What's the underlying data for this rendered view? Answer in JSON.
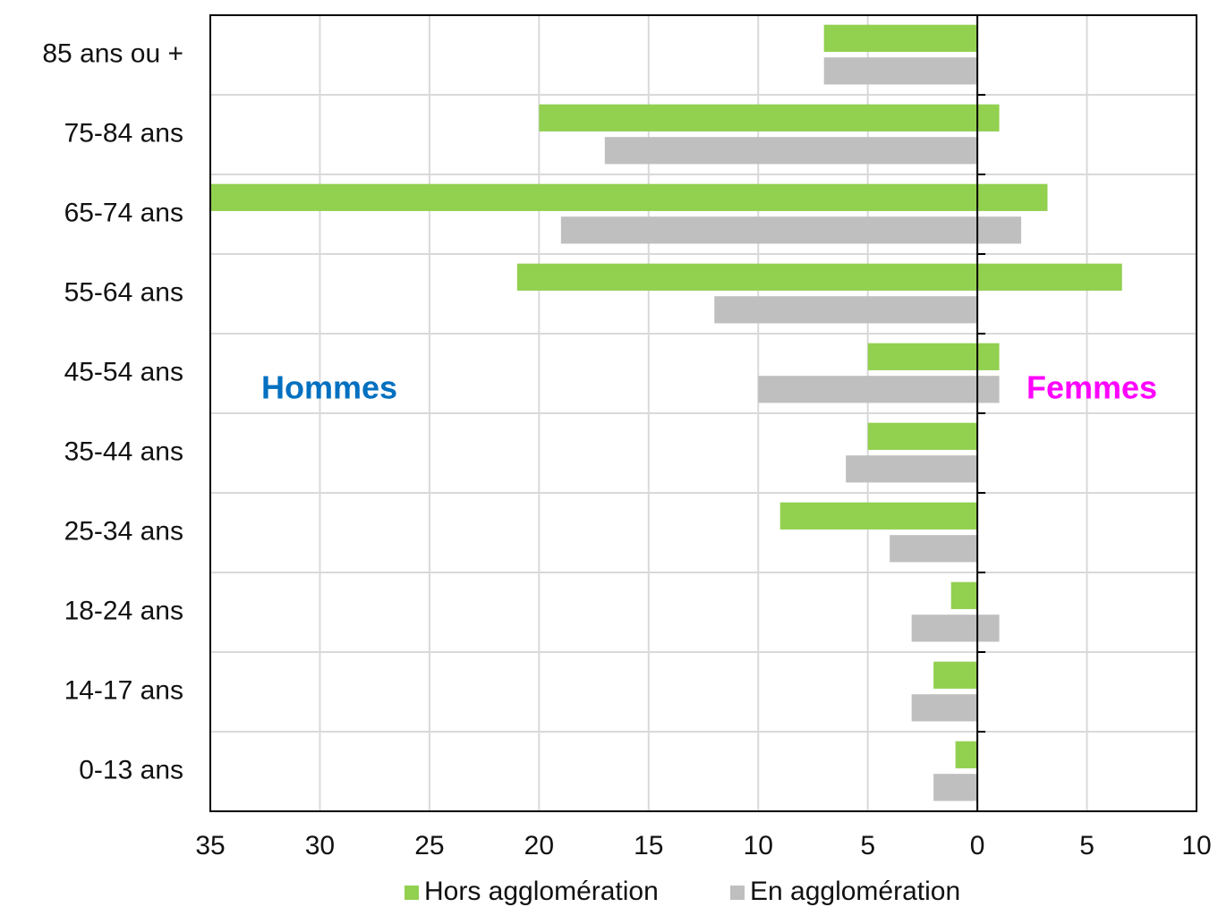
{
  "chart_data": {
    "type": "bar",
    "orientation": "horizontal",
    "categories": [
      "85 ans ou +",
      "75-84 ans",
      "65-74 ans",
      "55-64 ans",
      "45-54 ans",
      "35-44 ans",
      "25-34 ans",
      "18-24 ans",
      "14-17 ans",
      "0-13 ans"
    ],
    "series": [
      {
        "name": "Hors agglomération",
        "color": "#92d050",
        "hommes": [
          -7,
          -20,
          -35,
          -21,
          -5,
          -5,
          -9,
          -1.2,
          -2,
          -1
        ],
        "femmes": [
          0,
          1,
          3.2,
          6.6,
          1,
          0,
          0,
          0,
          0,
          0
        ]
      },
      {
        "name": "En agglomération",
        "color": "#bfbfbf",
        "hommes": [
          -7,
          -17,
          -19,
          -12,
          -10,
          -6,
          -4,
          -3,
          -3,
          -2
        ],
        "femmes": [
          0,
          0,
          2,
          0,
          1,
          0,
          0,
          1,
          0,
          0
        ]
      }
    ],
    "annotations": [
      {
        "text": "Hommes",
        "color": "#0070c0"
      },
      {
        "text": "Femmes",
        "color": "#ff00ff"
      }
    ],
    "xlim": [
      -35,
      10
    ],
    "xticks": [
      {
        "value": -35,
        "label": "35"
      },
      {
        "value": -30,
        "label": "30"
      },
      {
        "value": -25,
        "label": "25"
      },
      {
        "value": -20,
        "label": "20"
      },
      {
        "value": -15,
        "label": "15"
      },
      {
        "value": -10,
        "label": "10"
      },
      {
        "value": -5,
        "label": "5"
      },
      0,
      5,
      10
    ],
    "grid": true,
    "legend": "bottom"
  }
}
